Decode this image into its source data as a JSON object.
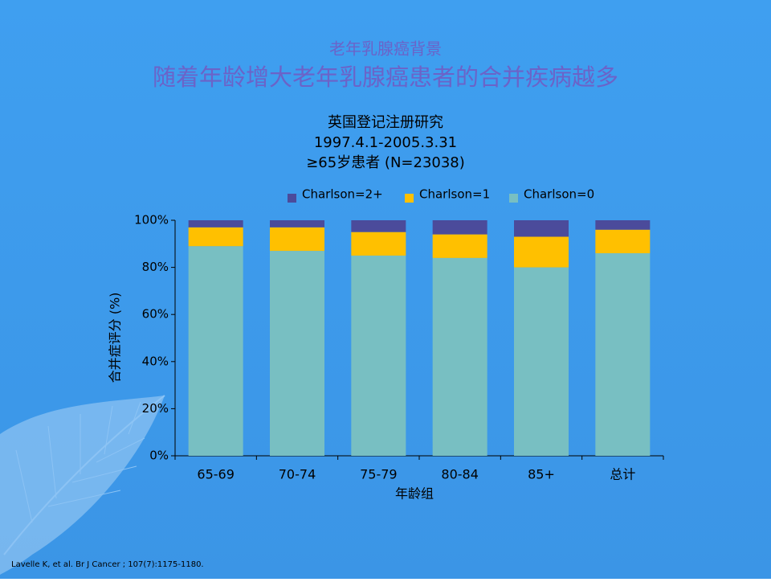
{
  "chart_data": {
    "type": "stacked_bar",
    "heading": "老年乳腺癌背景",
    "subheading": "随着年龄增大老年乳腺癌患者的合并疾病越多",
    "title": [
      "英国登记注册研究",
      "1997.4.1-2005.3.31",
      "≥65岁患者 (N=23038)"
    ],
    "categories": [
      "65-69",
      "70-74",
      "75-79",
      "80-84",
      "85+",
      "总计"
    ],
    "series": [
      {
        "name": "Charlson=2+",
        "color": "#4b4b9b",
        "values": [
          3,
          3,
          5,
          6,
          7,
          4
        ]
      },
      {
        "name": "Charlson=1",
        "color": "#ffc000",
        "values": [
          8,
          10,
          10,
          10,
          13,
          10
        ]
      },
      {
        "name": "Charlson=0",
        "color": "#78bfc2",
        "values": [
          89,
          87,
          85,
          84,
          80,
          86
        ]
      }
    ],
    "ylim": [
      0,
      100
    ],
    "yticks": [
      {
        "value": 0,
        "label": "0%"
      },
      {
        "value": 20,
        "label": "20%"
      },
      {
        "value": 40,
        "label": "40%"
      },
      {
        "value": 60,
        "label": "60%"
      },
      {
        "value": 80,
        "label": "80%"
      },
      {
        "value": 100,
        "label": "100%"
      }
    ],
    "xlabel": "年龄组",
    "ylabel": "合并症评分 (%)",
    "legend": "top",
    "footnote": "Lavelle K, et al. Br J Cancer    ; 107(7):1175-1180."
  }
}
